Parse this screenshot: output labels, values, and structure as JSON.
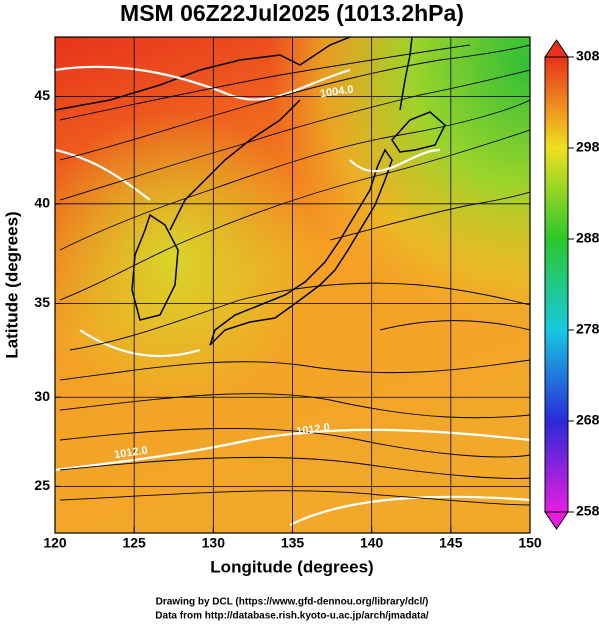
{
  "title": "MSM 06Z22Jul2025 (1013.2hPa)",
  "map": {
    "xlabel": "Longitude (degrees)",
    "ylabel": "Latitude  (degrees)",
    "xlim": [
      120,
      150
    ],
    "ylim": [
      22.3,
      47.6
    ],
    "xticks": [
      120,
      125,
      130,
      135,
      140,
      145,
      150
    ],
    "yticks": [
      25,
      30,
      35,
      40,
      45
    ],
    "contour_labels": [
      {
        "text": "1004.0",
        "lon": 137.8,
        "lat": 45.2
      },
      {
        "text": "1012.0",
        "lon": 136.3,
        "lat": 28.2
      },
      {
        "text": "1012.0",
        "lon": 124.8,
        "lat": 26.9
      }
    ]
  },
  "colorbar": {
    "lim": [
      258,
      308
    ],
    "ticks": [
      258,
      268,
      278,
      288,
      298,
      308
    ]
  },
  "credits": [
    "Drawing by DCL (https://www.gfd-dennou.org/library/dcl/)",
    "Data from http://database.rish.kyoto-u.ac.jp/arch/jmadata/"
  ]
}
